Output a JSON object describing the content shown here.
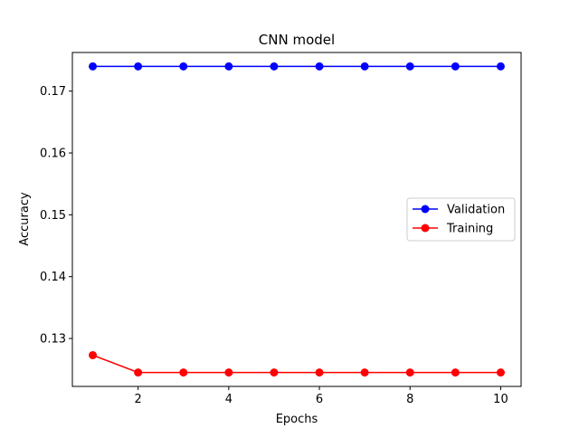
{
  "chart_data": {
    "type": "line",
    "title": "CNN model",
    "xlabel": "Epochs",
    "ylabel": "Accuracy",
    "x": [
      1,
      2,
      3,
      4,
      5,
      6,
      7,
      8,
      9,
      10
    ],
    "xlim": [
      0.55,
      10.45
    ],
    "ylim": [
      0.12225,
      0.17625
    ],
    "xticks": [
      2,
      4,
      6,
      8,
      10
    ],
    "xtick_labels": [
      "2",
      "4",
      "6",
      "8",
      "10"
    ],
    "yticks": [
      0.13,
      0.14,
      0.15,
      0.16,
      0.17
    ],
    "ytick_labels": [
      "0.13",
      "0.14",
      "0.15",
      "0.16",
      "0.17"
    ],
    "grid": false,
    "legend_position": "center-right",
    "series": [
      {
        "name": "Validation",
        "color": "#0000ff",
        "marker": "circle",
        "values": [
          0.174,
          0.174,
          0.174,
          0.174,
          0.174,
          0.174,
          0.174,
          0.174,
          0.174,
          0.174
        ]
      },
      {
        "name": "Training",
        "color": "#ff0000",
        "marker": "circle",
        "values": [
          0.1273,
          0.1245,
          0.1245,
          0.1245,
          0.1245,
          0.1245,
          0.1245,
          0.1245,
          0.1245,
          0.1245
        ]
      }
    ]
  }
}
